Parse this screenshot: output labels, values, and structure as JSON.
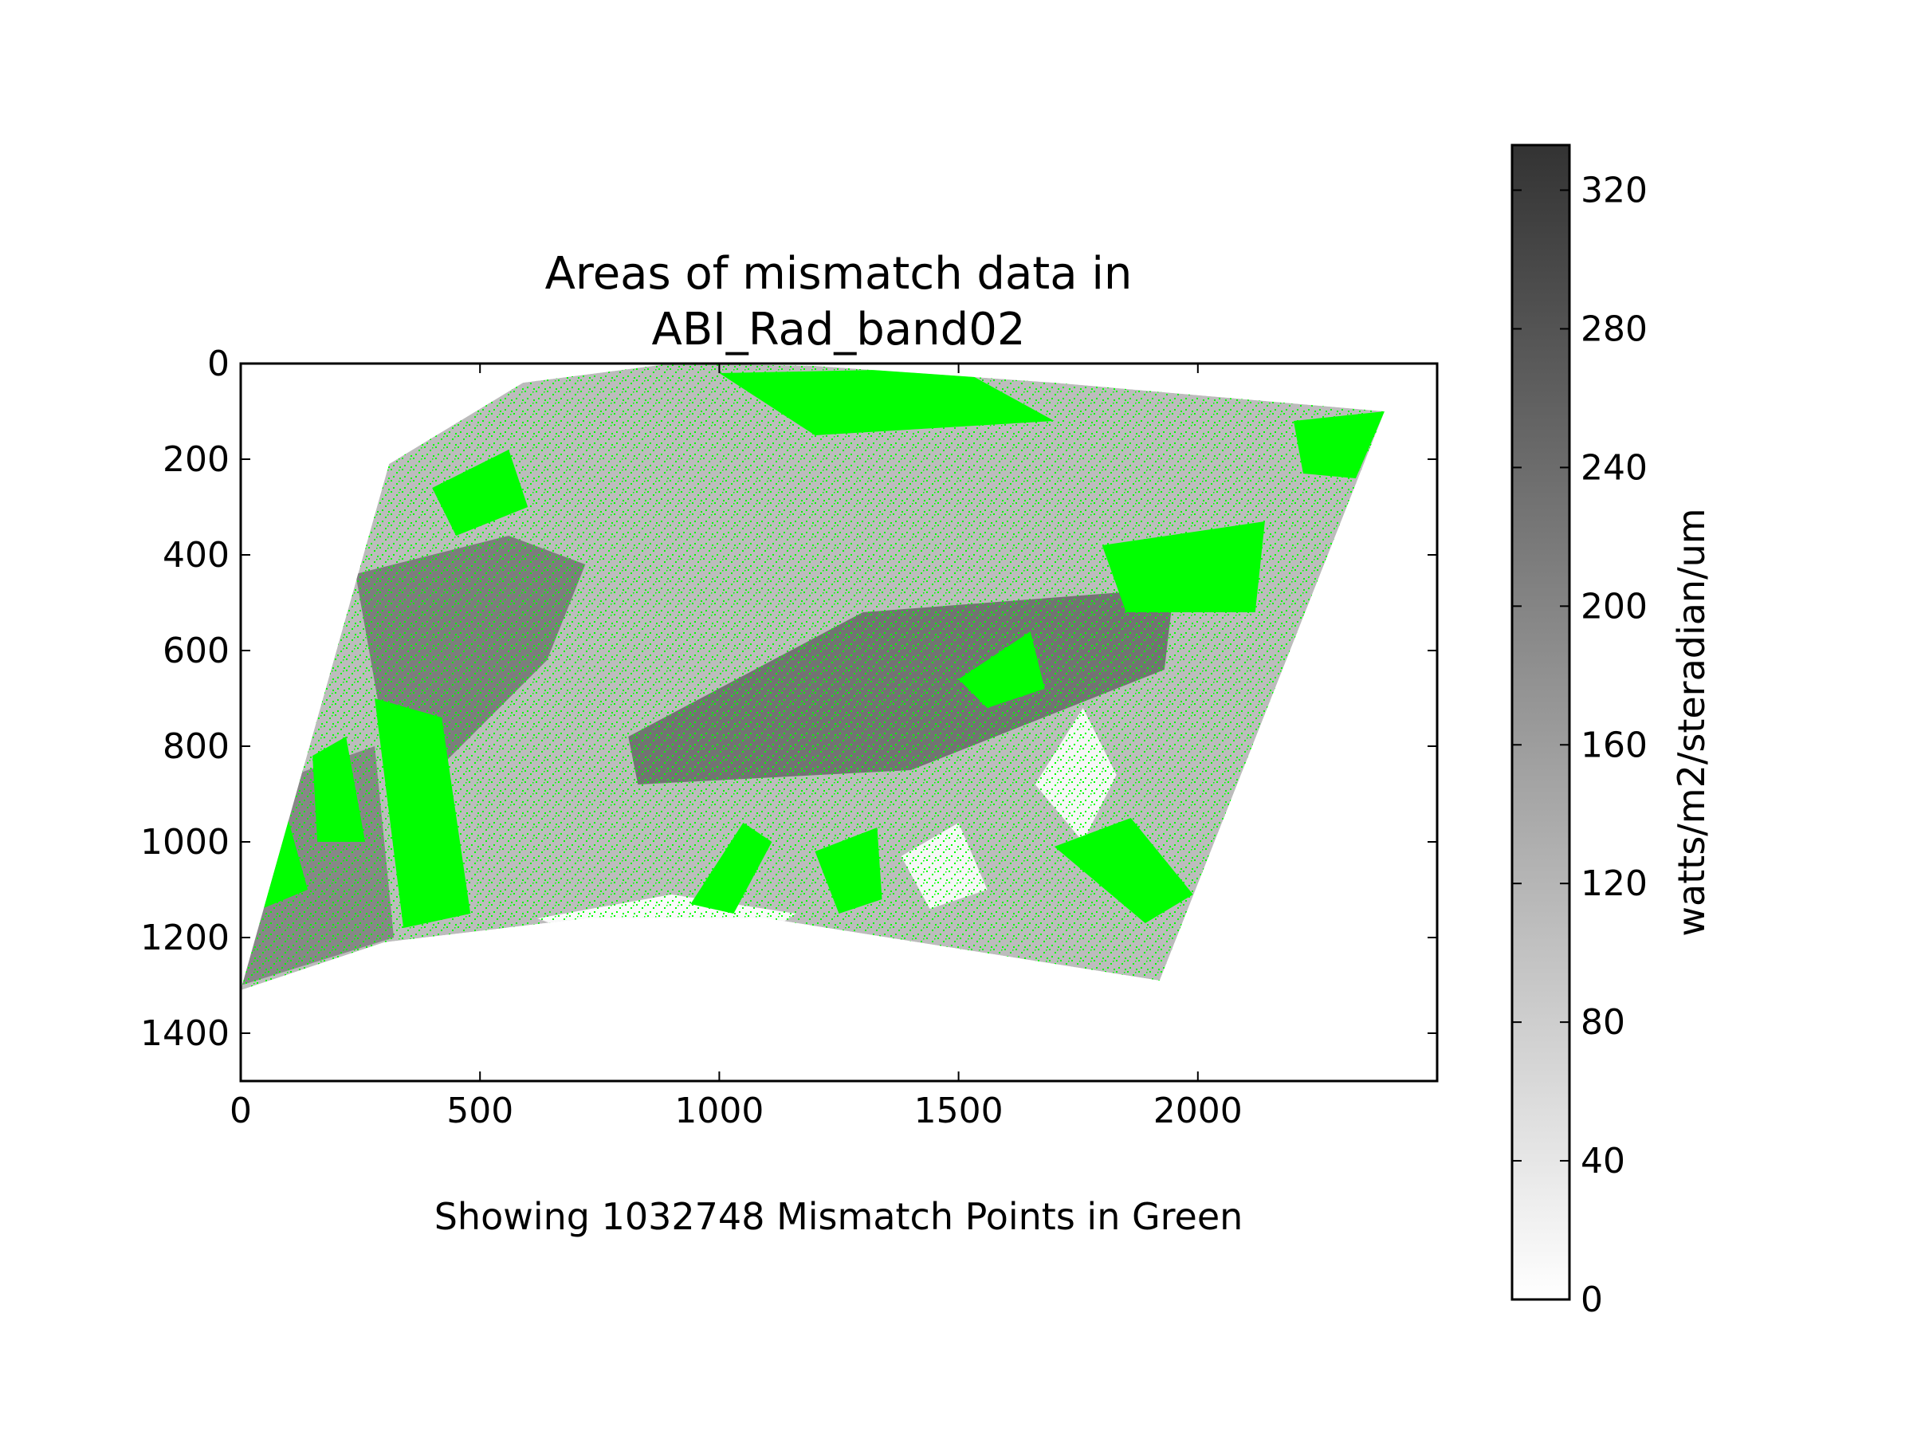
{
  "chart_data": {
    "type": "heatmap",
    "title_line1": "Areas of mismatch data in",
    "title_line2": "ABI_Rad_band02",
    "caption": "Showing 1032748 Mismatch Points in Green",
    "xlabel": "",
    "ylabel": "",
    "x_ticks": [
      0,
      500,
      1000,
      1500,
      2000
    ],
    "y_ticks": [
      0,
      200,
      400,
      600,
      800,
      1000,
      1200,
      1400
    ],
    "xlim": [
      0,
      2500
    ],
    "ylim": [
      1500,
      0
    ],
    "y_inverted": true,
    "mismatch_points": 1032748,
    "mismatch_color": "#00ff00",
    "colormap": "greys",
    "colorbar": {
      "label": "watts/m2/steradian/um",
      "ticks": [
        0,
        40,
        80,
        120,
        160,
        200,
        240,
        280,
        320
      ],
      "range": [
        0,
        333
      ]
    },
    "swath_outline": [
      [
        0,
        1310
      ],
      [
        310,
        210
      ],
      [
        590,
        40
      ],
      [
        900,
        0
      ],
      [
        1200,
        5
      ],
      [
        1700,
        40
      ],
      [
        2390,
        100
      ],
      [
        1920,
        1290
      ],
      [
        1100,
        1160
      ],
      [
        720,
        1160
      ],
      [
        300,
        1210
      ],
      [
        0,
        1310
      ]
    ],
    "dark_features": [
      {
        "points": [
          [
            810,
            780
          ],
          [
            1300,
            520
          ],
          [
            1950,
            470
          ],
          [
            1930,
            640
          ],
          [
            1400,
            850
          ],
          [
            830,
            880
          ]
        ],
        "value": 250
      },
      {
        "points": [
          [
            240,
            440
          ],
          [
            560,
            360
          ],
          [
            720,
            420
          ],
          [
            640,
            620
          ],
          [
            430,
            830
          ],
          [
            300,
            780
          ]
        ],
        "value": 230
      },
      {
        "points": [
          [
            0,
            900
          ],
          [
            280,
            800
          ],
          [
            320,
            1200
          ],
          [
            0,
            1300
          ]
        ],
        "value": 210
      }
    ],
    "bright_features": [
      {
        "points": [
          [
            620,
            1160
          ],
          [
            900,
            1110
          ],
          [
            1160,
            1150
          ],
          [
            1100,
            1190
          ],
          [
            700,
            1190
          ]
        ],
        "value": 10
      },
      {
        "points": [
          [
            1660,
            880
          ],
          [
            1760,
            720
          ],
          [
            1830,
            860
          ],
          [
            1760,
            1000
          ]
        ],
        "value": 15
      },
      {
        "points": [
          [
            1380,
            1030
          ],
          [
            1500,
            960
          ],
          [
            1560,
            1100
          ],
          [
            1440,
            1140
          ]
        ],
        "value": 15
      }
    ],
    "green_features": [
      [
        [
          280,
          700
        ],
        [
          420,
          740
        ],
        [
          480,
          1150
        ],
        [
          340,
          1180
        ]
      ],
      [
        [
          150,
          820
        ],
        [
          220,
          780
        ],
        [
          260,
          1000
        ],
        [
          160,
          1000
        ]
      ],
      [
        [
          940,
          1130
        ],
        [
          1050,
          960
        ],
        [
          1110,
          1000
        ],
        [
          1030,
          1150
        ]
      ],
      [
        [
          1200,
          1020
        ],
        [
          1330,
          970
        ],
        [
          1340,
          1120
        ],
        [
          1250,
          1150
        ]
      ],
      [
        [
          1700,
          1010
        ],
        [
          1860,
          950
        ],
        [
          1990,
          1110
        ],
        [
          1890,
          1170
        ]
      ],
      [
        [
          1500,
          660
        ],
        [
          1650,
          560
        ],
        [
          1680,
          680
        ],
        [
          1560,
          720
        ]
      ],
      [
        [
          1800,
          380
        ],
        [
          2140,
          330
        ],
        [
          2120,
          520
        ],
        [
          1850,
          520
        ]
      ],
      [
        [
          2200,
          120
        ],
        [
          2390,
          100
        ],
        [
          2330,
          240
        ],
        [
          2220,
          230
        ]
      ],
      [
        [
          1000,
          20
        ],
        [
          1500,
          10
        ],
        [
          1700,
          120
        ],
        [
          1200,
          150
        ]
      ],
      [
        [
          0,
          940
        ],
        [
          90,
          920
        ],
        [
          140,
          1100
        ],
        [
          20,
          1150
        ]
      ],
      [
        [
          400,
          260
        ],
        [
          560,
          180
        ],
        [
          600,
          300
        ],
        [
          450,
          360
        ]
      ]
    ]
  }
}
